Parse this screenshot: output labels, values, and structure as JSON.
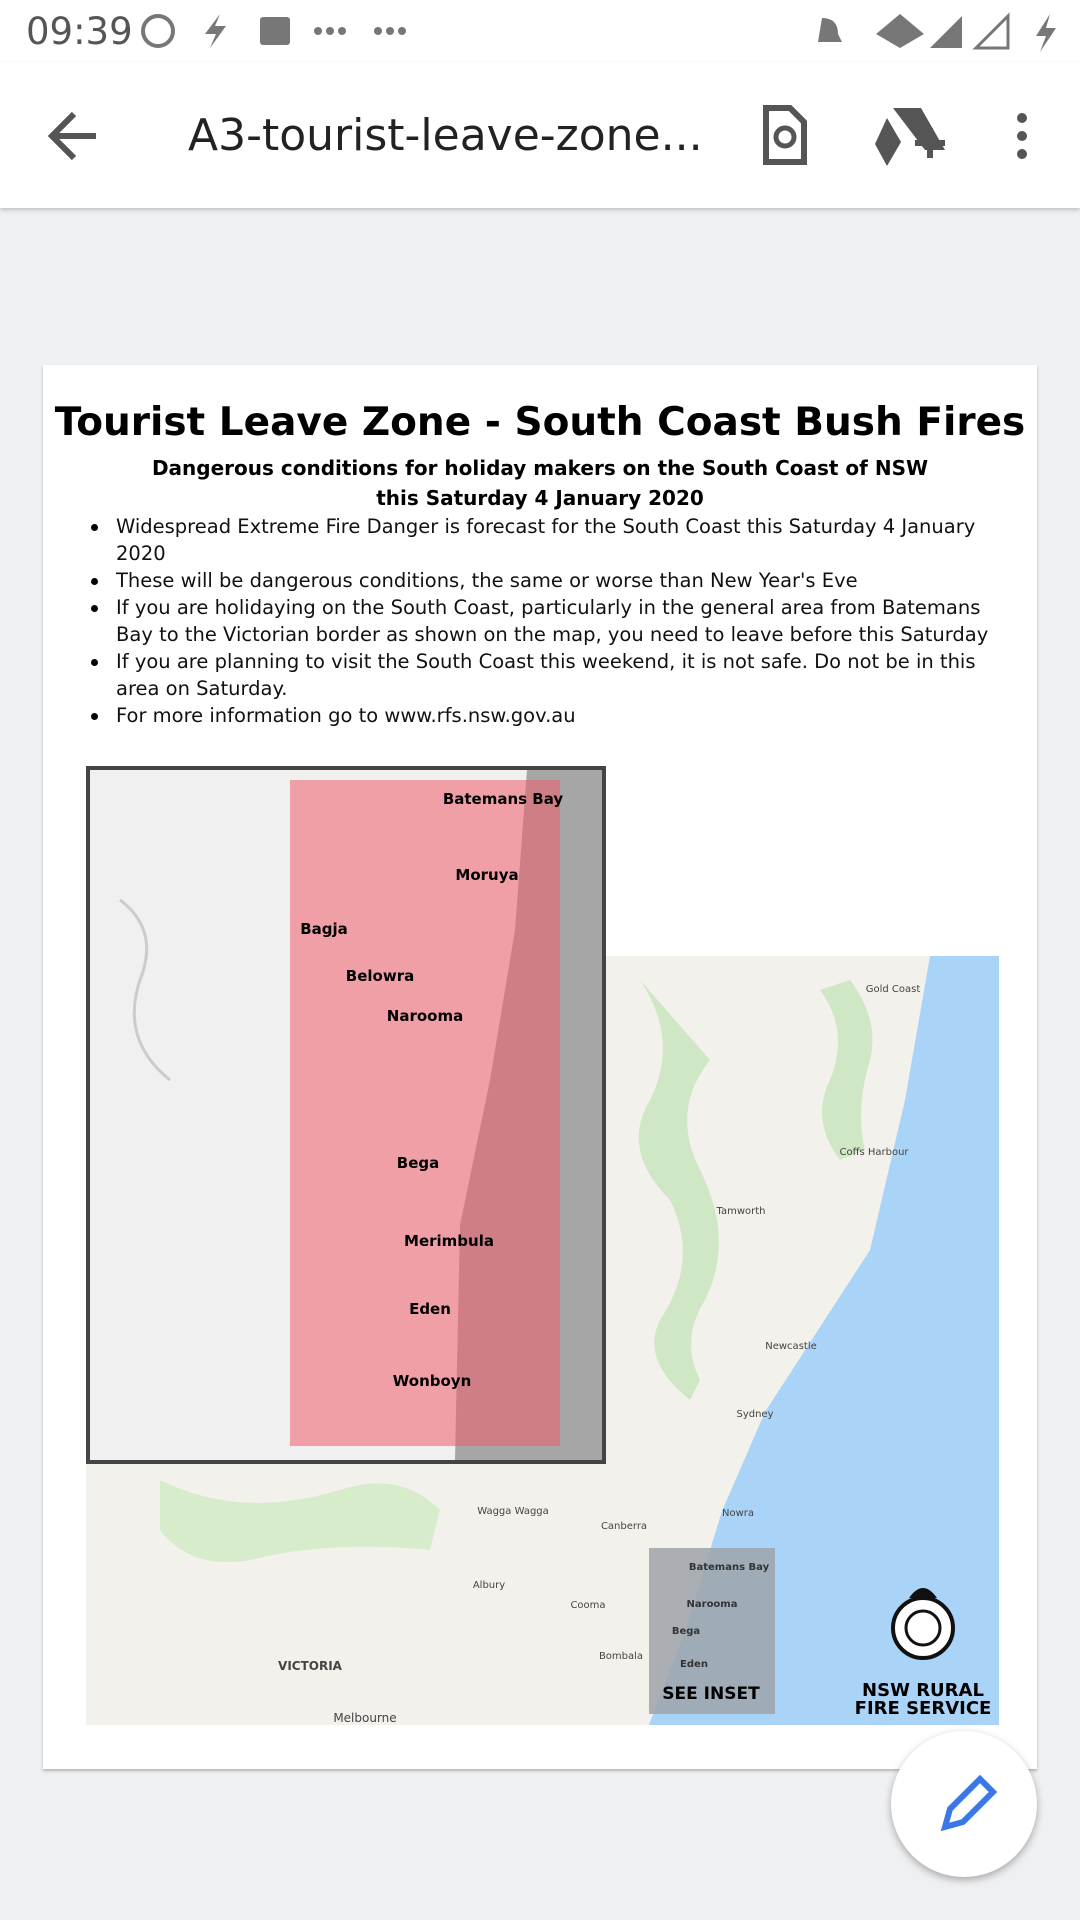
{
  "status_bar": {
    "time": "09:39"
  },
  "app_bar": {
    "title": "A3-tourist-leave-zone..."
  },
  "document": {
    "title": "Tourist Leave Zone - South Coast Bush Fires",
    "subtitle": "Dangerous conditions for holiday makers on the South Coast of NSW this Saturday 4 January 2020",
    "bullets": [
      "Widespread Extreme Fire Danger is forecast for the South Coast this Saturday 4 January 2020",
      "These will be dangerous conditions, the same or worse than New Year's Eve",
      "If you are holidaying on the South Coast, particularly in the general area from Batemans Bay to the Victorian border as shown on the map, you need to leave before this Saturday",
      "If you are planning to visit the South Coast this weekend, it is not safe. Do not be in this area on Saturday.",
      "For more information go to www.rfs.nsw.gov.au"
    ],
    "map": {
      "inset_labels": [
        "Batemans Bay",
        "Moruya",
        "Bagja",
        "Belowra",
        "Narooma",
        "Bega",
        "Merimbula",
        "Eden",
        "Wonboyn"
      ],
      "main_labels": [
        "Sydney",
        "Canberra",
        "Newcastle",
        "Nowra",
        "VICTORIA",
        "Melbourne",
        "Albury",
        "Bombala",
        "Cooma",
        "Coffs Harbour",
        "Tamworth",
        "Gold Coast",
        "Wagga Wagga"
      ],
      "inset_key": {
        "labels": [
          "Batemans Bay",
          "Narooma",
          "Bega",
          "Eden"
        ],
        "caption": "SEE INSET"
      },
      "logo": [
        "NSW RURAL",
        "FIRE SERVICE"
      ]
    }
  }
}
